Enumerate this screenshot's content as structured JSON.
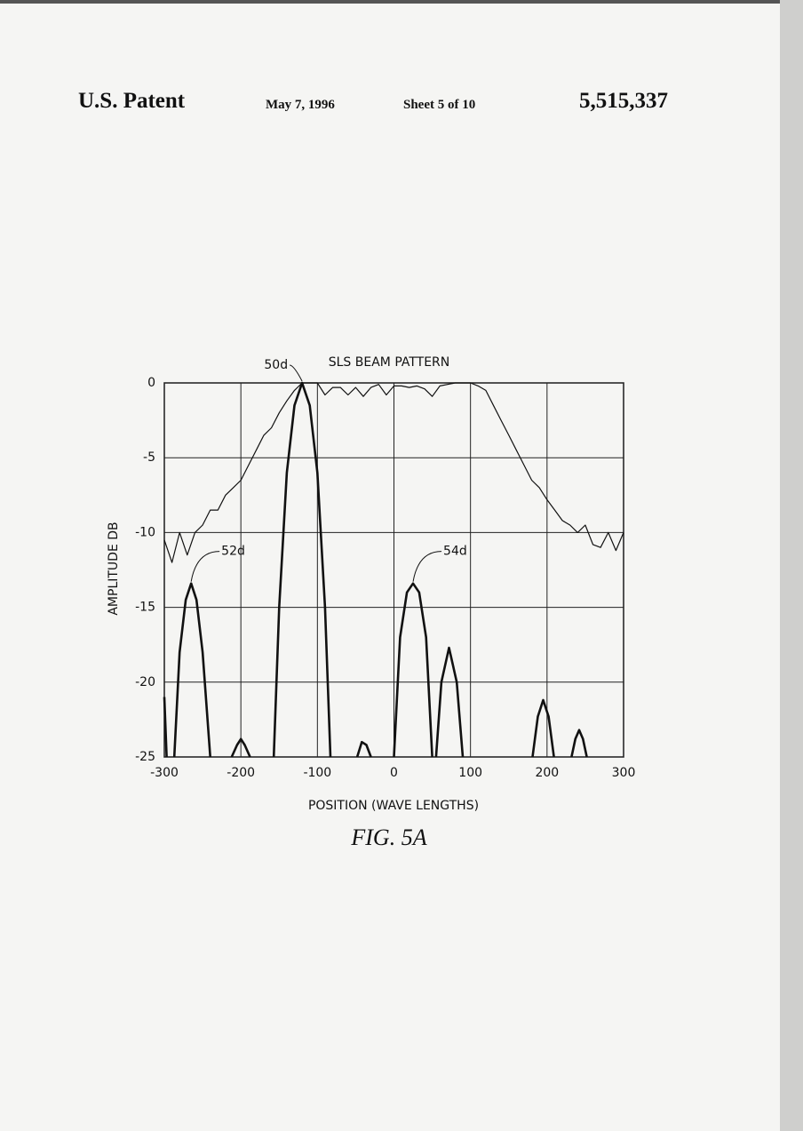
{
  "header": {
    "left": "U.S. Patent",
    "date": "May 7, 1996",
    "sheet": "Sheet 5 of 10",
    "number": "5,515,337"
  },
  "chart_data": {
    "type": "line",
    "title": "SLS BEAM PATTERN",
    "x_label": "POSITION (WAVE LENGTHS)",
    "y_label": "AMPLITUDE DB",
    "xlim": [
      -300,
      300
    ],
    "ylim": [
      -25,
      0
    ],
    "xticks": [
      -300,
      -200,
      -100,
      0,
      100,
      200,
      300
    ],
    "yticks": [
      0,
      -5,
      -10,
      -15,
      -20,
      -25
    ],
    "grid": true,
    "series": [
      {
        "color": "#111111",
        "line_width": 1.2,
        "x": [
          -300,
          -290,
          -280,
          -270,
          -260,
          -250,
          -240,
          -230,
          -220,
          -210,
          -200,
          -190,
          -180,
          -170,
          -160,
          -150,
          -140,
          -130,
          -120,
          -110,
          -100,
          -90,
          -80,
          -70,
          -60,
          -50,
          -40,
          -30,
          -20,
          -10,
          0,
          10,
          20,
          30,
          40,
          50,
          60,
          70,
          80,
          90,
          100,
          110,
          120,
          130,
          140,
          150,
          160,
          170,
          180,
          190,
          200,
          210,
          220,
          230,
          240,
          250,
          260,
          270,
          280,
          290,
          300
        ],
        "values": [
          -10.5,
          -12,
          -10,
          -11.5,
          -10,
          -9.5,
          -8.5,
          -8.5,
          -7.5,
          -7,
          -6.5,
          -5.5,
          -4.5,
          -3.5,
          -3,
          -2,
          -1.2,
          -0.5,
          0,
          0,
          0,
          -0.8,
          -0.3,
          -0.3,
          -0.8,
          -0.3,
          -0.9,
          -0.3,
          -0.1,
          -0.8,
          -0.2,
          -0.2,
          -0.3,
          -0.2,
          -0.4,
          -0.9,
          -0.2,
          -0.1,
          0,
          0,
          0,
          -0.2,
          -0.5,
          -1.5,
          -2.5,
          -3.5,
          -4.5,
          -5.5,
          -6.5,
          -7,
          -7.8,
          -8.5,
          -9.2,
          -9.5,
          -10,
          -9.5,
          -10.8,
          -11,
          -10,
          -11.2,
          -10
        ]
      },
      {
        "color": "#111111",
        "line_width": 2.6,
        "x": [
          -300,
          -297,
          null,
          -287,
          -280,
          -272,
          -265,
          -258,
          -250,
          -240,
          null,
          -212,
          -205,
          -200,
          -195,
          -188,
          null,
          -157,
          -150,
          -140,
          -130,
          -120,
          -110,
          -100,
          -90,
          -83,
          null,
          -48,
          -42,
          -36,
          -30,
          null,
          0,
          8,
          17,
          25,
          33,
          42,
          50,
          null,
          55,
          62,
          72,
          82,
          90,
          null,
          181,
          188,
          195,
          202,
          209,
          null,
          232,
          237,
          242,
          247,
          252
        ],
        "values": [
          -21,
          -25,
          null,
          -25,
          -18,
          -14.5,
          -13.4,
          -14.5,
          -18,
          -25,
          null,
          -25,
          -24.2,
          -23.8,
          -24.2,
          -25,
          null,
          -25,
          -15,
          -6,
          -1.5,
          0,
          -1.5,
          -6,
          -15,
          -25,
          null,
          -25,
          -24,
          -24.2,
          -25,
          null,
          -25,
          -17,
          -14,
          -13.4,
          -14,
          -17,
          -25,
          null,
          -25,
          -20,
          -17.7,
          -20,
          -25,
          null,
          -25,
          -22.3,
          -21.2,
          -22.3,
          -25,
          null,
          -25,
          -23.8,
          -23.2,
          -23.8,
          -25
        ]
      }
    ],
    "annotations": [
      {
        "text": "50d",
        "x": -120,
        "y": 0
      },
      {
        "text": "52d",
        "x": -265,
        "y": -13.4
      },
      {
        "text": "54d",
        "x": 25,
        "y": -13.4
      }
    ],
    "caption": "FIG. 5A"
  }
}
